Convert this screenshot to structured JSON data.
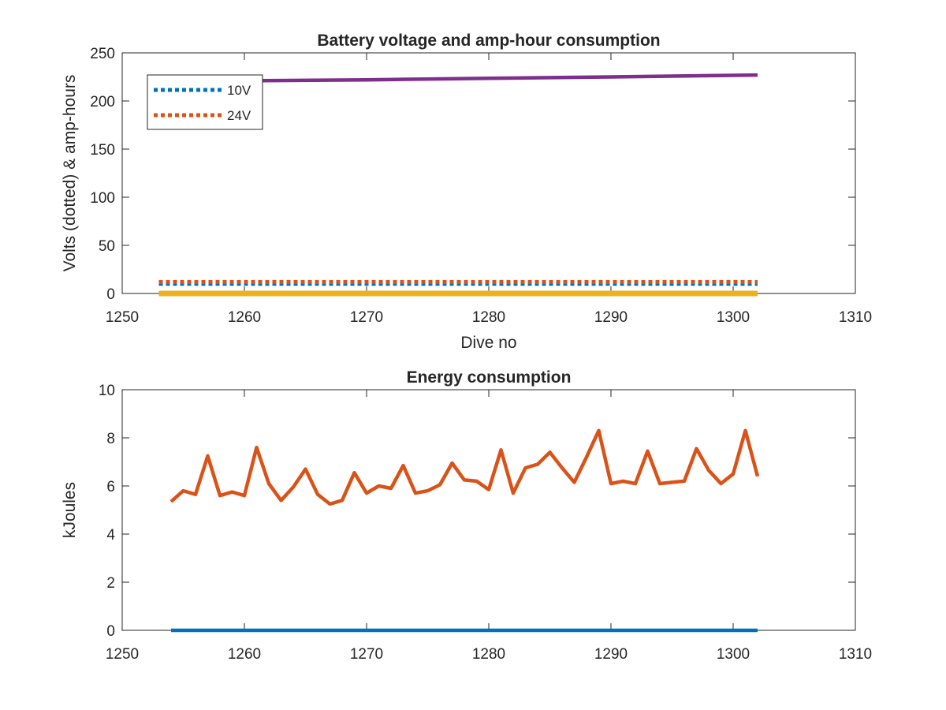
{
  "chart_data": [
    {
      "type": "line",
      "title": "Battery voltage and amp-hour consumption",
      "xlabel": "Dive no",
      "ylabel": "Volts (dotted) & amp-hours",
      "xlim": [
        1250,
        1310
      ],
      "ylim": [
        0,
        250
      ],
      "xticks": [
        "1250",
        "1260",
        "1270",
        "1280",
        "1290",
        "1300",
        "1310"
      ],
      "yticks": [
        "0",
        "50",
        "100",
        "150",
        "200",
        "250"
      ],
      "grid": false,
      "legend": {
        "placement": "top-left",
        "entries": [
          "10V",
          "24V"
        ]
      },
      "series": [
        {
          "name": "10V",
          "style": "dotted",
          "color": "#0072BD",
          "x": [
            1253,
            1302
          ],
          "y": [
            10,
            10
          ]
        },
        {
          "name": "24V",
          "style": "dotted",
          "color": "#D95319",
          "x": [
            1253,
            1302
          ],
          "y": [
            12,
            12
          ]
        },
        {
          "style": "solid",
          "color": "#EDB120",
          "x": [
            1253,
            1302
          ],
          "y": [
            0,
            0
          ]
        },
        {
          "style": "solid",
          "color": "#7E2F8E",
          "x": [
            1253,
            1260,
            1270,
            1280,
            1290,
            1302
          ],
          "y": [
            219,
            221,
            222,
            223.5,
            225,
            227
          ]
        }
      ]
    },
    {
      "type": "line",
      "title": "Energy consumption",
      "xlabel": "",
      "ylabel": "kJoules",
      "xlim": [
        1250,
        1310
      ],
      "ylim": [
        0,
        10
      ],
      "xticks": [
        "1250",
        "1260",
        "1270",
        "1280",
        "1290",
        "1300",
        "1310"
      ],
      "yticks": [
        "0",
        "2",
        "4",
        "6",
        "8",
        "10"
      ],
      "grid": false,
      "series": [
        {
          "style": "solid",
          "color": "#0072BD",
          "x": [
            1254,
            1302
          ],
          "y": [
            0,
            0
          ]
        },
        {
          "style": "solid",
          "color": "#D95319",
          "x": [
            1254,
            1255,
            1256,
            1257,
            1258,
            1259,
            1260,
            1261,
            1262,
            1263,
            1264,
            1265,
            1266,
            1267,
            1268,
            1269,
            1270,
            1271,
            1272,
            1273,
            1274,
            1275,
            1276,
            1277,
            1278,
            1279,
            1280,
            1281,
            1282,
            1283,
            1284,
            1285,
            1286,
            1287,
            1288,
            1289,
            1290,
            1291,
            1292,
            1293,
            1294,
            1295,
            1296,
            1297,
            1298,
            1299,
            1300,
            1301,
            1302
          ],
          "y": [
            5.35,
            5.8,
            5.65,
            7.25,
            5.6,
            5.75,
            5.6,
            7.6,
            6.1,
            5.4,
            5.95,
            6.7,
            5.65,
            5.25,
            5.4,
            6.55,
            5.7,
            6.0,
            5.9,
            6.85,
            5.7,
            5.8,
            6.05,
            6.95,
            6.25,
            6.2,
            5.85,
            7.5,
            5.7,
            6.75,
            6.9,
            7.4,
            6.75,
            6.15,
            7.2,
            8.3,
            6.1,
            6.2,
            6.1,
            7.45,
            6.1,
            6.15,
            6.2,
            7.55,
            6.65,
            6.1,
            6.5,
            8.3,
            6.4
          ]
        }
      ]
    }
  ]
}
